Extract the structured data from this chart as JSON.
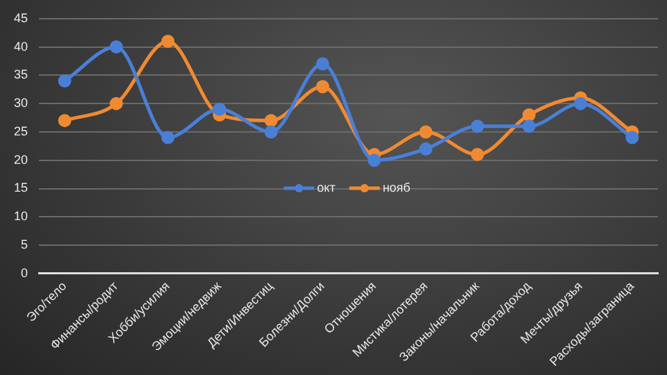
{
  "chart_data": {
    "type": "line",
    "categories": [
      "Эго/тело",
      "Финансы/родит",
      "Хобби/усилия",
      "Эмоции/недвиж",
      "Дети/Инвестиц",
      "Болезни/Долги",
      "Отношения",
      "Мистика/лотерея",
      "Законы/начальник",
      "Работа/доход",
      "Мечты/друзья",
      "Расходы/заграница"
    ],
    "series": [
      {
        "name": "окт",
        "color": "#4a7fd6",
        "values": [
          34,
          40,
          24,
          29,
          25,
          37,
          20,
          22,
          26,
          26,
          30,
          24
        ]
      },
      {
        "name": "нояб",
        "color": "#f08a32",
        "values": [
          27,
          30,
          41,
          28,
          27,
          33,
          21,
          25,
          21,
          28,
          31,
          25
        ]
      }
    ],
    "ylim": [
      0,
      45
    ],
    "yticks": [
      0,
      5,
      10,
      15,
      20,
      25,
      30,
      35,
      40,
      45
    ],
    "grid": "y",
    "legend": "center",
    "marker": "circle",
    "line_style": "solid"
  }
}
